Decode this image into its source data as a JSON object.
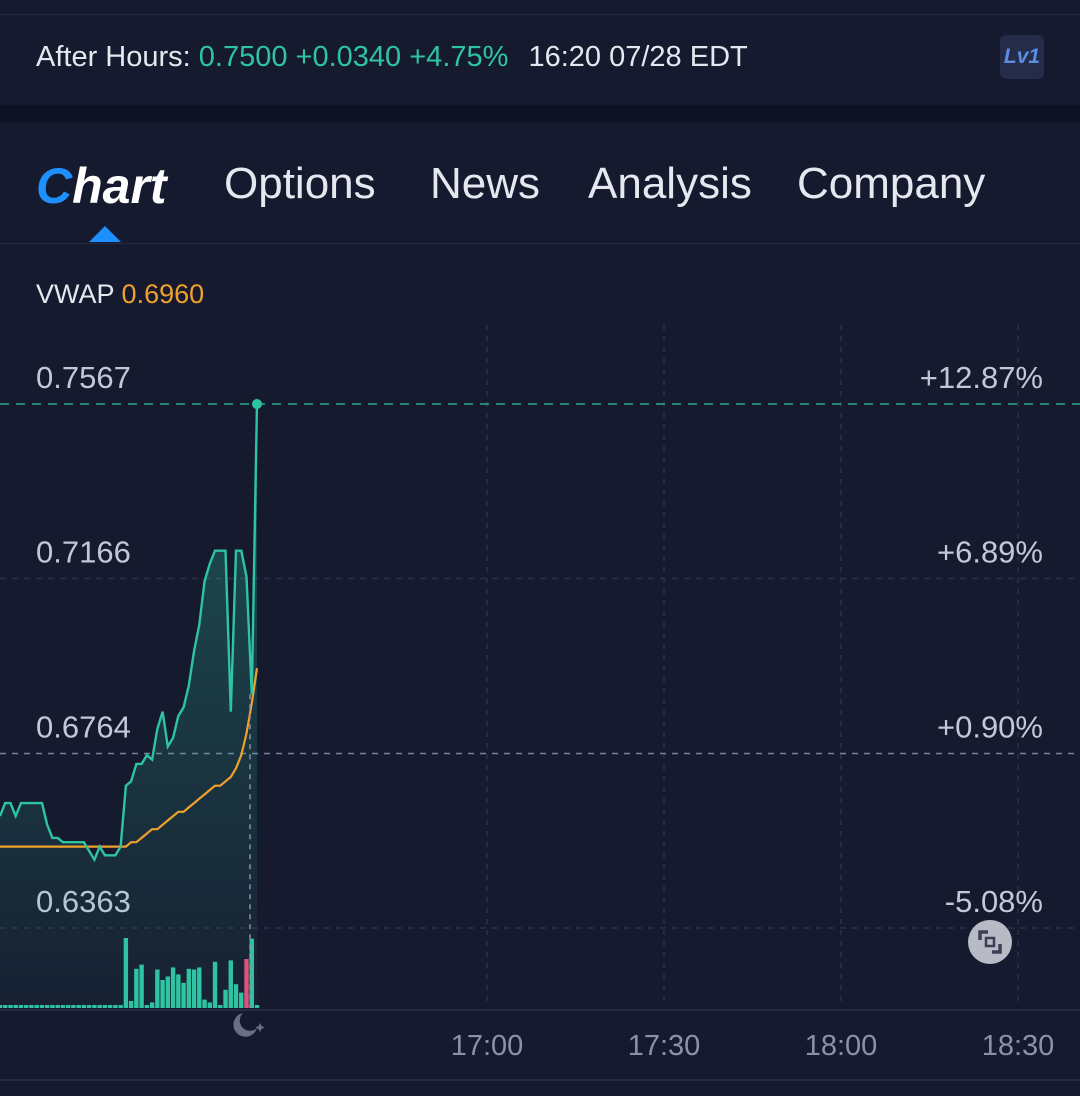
{
  "after_hours": {
    "label": "After Hours:",
    "price": "0.7500",
    "change": "+0.0340",
    "change_pct": "+4.75%",
    "time": "16:20 07/28 EDT",
    "level_badge": "Lv1"
  },
  "tabs": [
    {
      "label": "hart",
      "prefix": "C",
      "active": true
    },
    {
      "label": "Options"
    },
    {
      "label": "News"
    },
    {
      "label": "Analysis"
    },
    {
      "label": "Company"
    }
  ],
  "indicator": {
    "name": "VWAP",
    "value": "0.6960"
  },
  "colors": {
    "price_line": "#2ec4a2",
    "vwap_line": "#f0a02d",
    "volume_up": "#2ec4a2",
    "volume_down": "#e0507a",
    "accent": "#1e8fff",
    "background": "#161a2e"
  },
  "chart_data": {
    "type": "line",
    "y_ticks": [
      {
        "price": "0.7567",
        "pct": "+12.87%"
      },
      {
        "price": "0.7166",
        "pct": "+6.89%"
      },
      {
        "price": "0.6764",
        "pct": "+0.90%"
      },
      {
        "price": "0.6363",
        "pct": "-5.08%"
      }
    ],
    "x_ticks": [
      "17:00",
      "17:30",
      "18:00",
      "18:30"
    ],
    "ylim": [
      0.6317,
      0.7567
    ],
    "last_price": 0.7567,
    "reference_price": 0.6764,
    "price_series": [
      0.662,
      0.665,
      0.665,
      0.662,
      0.665,
      0.665,
      0.665,
      0.665,
      0.665,
      0.66,
      0.657,
      0.657,
      0.656,
      0.656,
      0.656,
      0.656,
      0.656,
      0.654,
      0.652,
      0.655,
      0.653,
      0.653,
      0.653,
      0.655,
      0.669,
      0.67,
      0.674,
      0.674,
      0.676,
      0.675,
      0.682,
      0.686,
      0.678,
      0.68,
      0.685,
      0.687,
      0.692,
      0.7,
      0.706,
      0.716,
      0.72,
      0.723,
      0.723,
      0.723,
      0.686,
      0.723,
      0.723,
      0.717,
      0.69,
      0.757
    ],
    "vwap_series": [
      0.655,
      0.655,
      0.655,
      0.655,
      0.655,
      0.655,
      0.655,
      0.655,
      0.655,
      0.655,
      0.655,
      0.655,
      0.655,
      0.655,
      0.655,
      0.655,
      0.655,
      0.655,
      0.655,
      0.655,
      0.655,
      0.655,
      0.655,
      0.655,
      0.655,
      0.656,
      0.656,
      0.657,
      0.658,
      0.659,
      0.659,
      0.66,
      0.661,
      0.662,
      0.663,
      0.663,
      0.664,
      0.665,
      0.666,
      0.667,
      0.668,
      0.669,
      0.669,
      0.67,
      0.671,
      0.673,
      0.676,
      0.681,
      0.688,
      0.696
    ],
    "volume": [
      0.04,
      0.04,
      0.04,
      0.04,
      0.04,
      0.04,
      0.04,
      0.04,
      0.04,
      0.04,
      0.04,
      0.04,
      0.04,
      0.04,
      0.04,
      0.04,
      0.04,
      0.04,
      0.04,
      0.04,
      0.04,
      0.04,
      0.04,
      0.04,
      1.0,
      0.1,
      0.56,
      0.62,
      0.04,
      0.08,
      0.55,
      0.4,
      0.45,
      0.58,
      0.48,
      0.36,
      0.56,
      0.55,
      0.58,
      0.12,
      0.08,
      0.66,
      0.04,
      0.26,
      0.68,
      0.34,
      0.22,
      0.7,
      0.99,
      0.04
    ],
    "volume_down_index": [
      47
    ]
  }
}
